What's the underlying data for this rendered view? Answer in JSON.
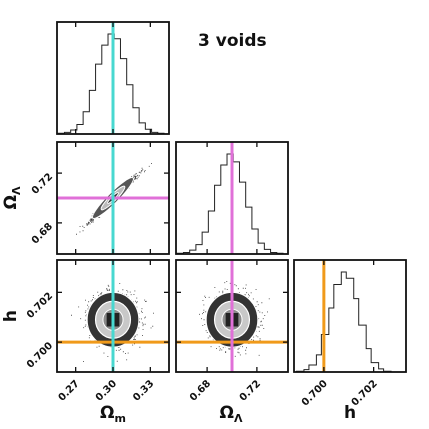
{
  "chart_data": {
    "type": "corner",
    "title": "3 voids",
    "parameters": [
      {
        "key": "om",
        "label": "Ω",
        "sub": "m",
        "range": [
          0.255,
          0.345
        ],
        "ticks": [
          0.27,
          0.3,
          0.33
        ],
        "tick_labels": [
          "0.27",
          "0.30",
          "0.33"
        ],
        "truth": 0.3,
        "truth_color": "#48d8d0",
        "mean": 0.3,
        "sigma": 0.0085
      },
      {
        "key": "ol",
        "label": "Ω",
        "sub": "Λ",
        "range": [
          0.655,
          0.745
        ],
        "ticks": [
          0.68,
          0.72
        ],
        "tick_labels": [
          "0.68",
          "0.72"
        ],
        "truth": 0.7,
        "truth_color": "#e070d8",
        "mean": 0.7,
        "sigma": 0.0085
      },
      {
        "key": "h",
        "label": "h",
        "sub": "",
        "range": [
          0.6988,
          0.7033
        ],
        "ticks": [
          0.7,
          0.702
        ],
        "tick_labels": [
          "0.700",
          "0.702"
        ],
        "truth": 0.7,
        "truth_color": "#f09a1a",
        "mean": 0.7009,
        "sigma": 0.00045
      }
    ],
    "histograms": [
      {
        "param": "om",
        "bins": [
          0.256,
          0.261,
          0.266,
          0.271,
          0.276,
          0.281,
          0.286,
          0.291,
          0.296,
          0.301,
          0.306,
          0.311,
          0.316,
          0.321,
          0.326,
          0.331,
          0.336,
          0.341
        ],
        "counts": [
          1,
          2,
          5,
          12,
          28,
          55,
          88,
          112,
          126,
          120,
          95,
          62,
          33,
          14,
          6,
          2,
          1
        ]
      },
      {
        "param": "ol",
        "bins": [
          0.656,
          0.661,
          0.666,
          0.671,
          0.676,
          0.681,
          0.686,
          0.691,
          0.696,
          0.701,
          0.706,
          0.711,
          0.716,
          0.721,
          0.726,
          0.731,
          0.736,
          0.741
        ],
        "counts": [
          1,
          2,
          5,
          12,
          28,
          55,
          88,
          114,
          128,
          118,
          92,
          60,
          32,
          14,
          6,
          2,
          1
        ]
      },
      {
        "param": "h",
        "bins": [
          0.6989,
          0.6992,
          0.6994,
          0.6997,
          0.6999,
          0.7002,
          0.7004,
          0.7007,
          0.7009,
          0.7012,
          0.7014,
          0.7017,
          0.7019,
          0.7022,
          0.7024,
          0.7027
        ],
        "counts": [
          1,
          3,
          9,
          22,
          48,
          82,
          112,
          128,
          120,
          94,
          60,
          30,
          12,
          4,
          1
        ]
      }
    ],
    "pairs": [
      {
        "x": "om",
        "y": "ol",
        "correlation": 0.985
      },
      {
        "x": "om",
        "y": "h",
        "correlation": 0.0
      },
      {
        "x": "ol",
        "y": "h",
        "correlation": 0.0
      }
    ],
    "contour_levels_sigma": [
      1,
      2
    ],
    "grid": false
  }
}
